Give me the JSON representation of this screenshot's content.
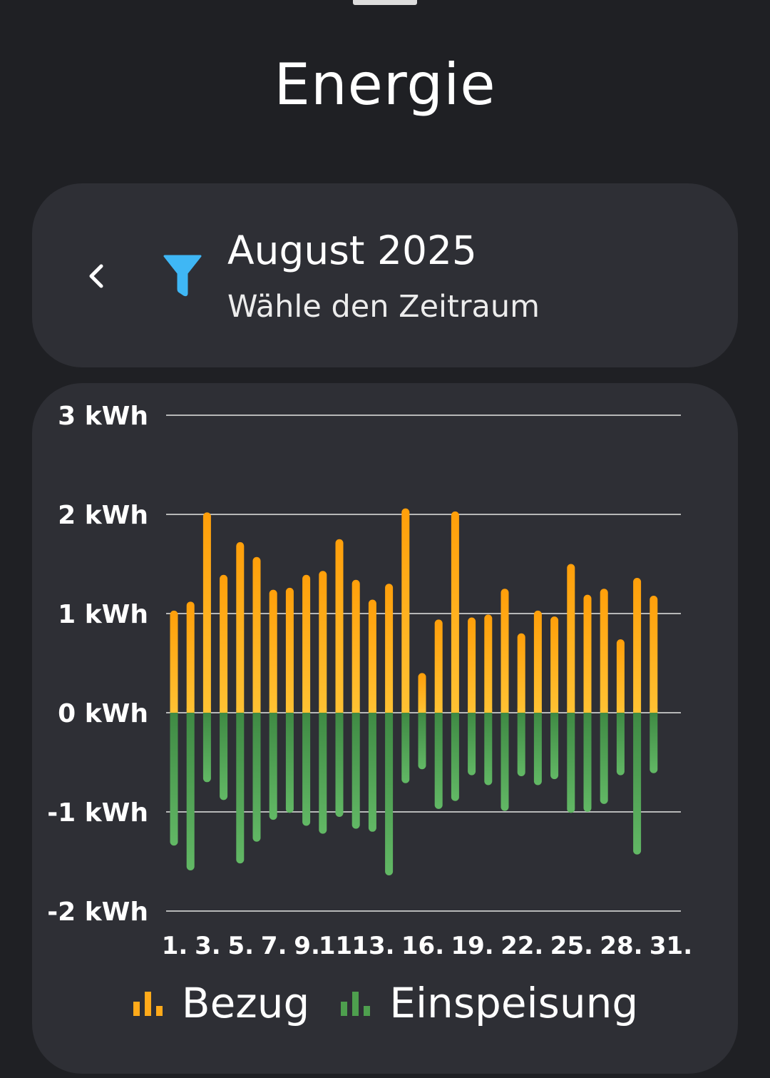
{
  "page": {
    "title": "Energie"
  },
  "period": {
    "title": "August 2025",
    "subtitle": "Wähle den Zeitraum"
  },
  "colors": {
    "background": "#1f2024",
    "card": "#2e2f35",
    "filter": "#3fb7f5",
    "bezug": "#ffaa1a",
    "einspeisung": "#4e9f4e",
    "grid": "#d0d0d0"
  },
  "icons": {
    "back": "chevron-left-icon",
    "filter": "filter-funnel-icon",
    "legend": "bar-chart-icon"
  },
  "chart_data": {
    "type": "bar",
    "stacked": "diverging",
    "ylim": [
      -2,
      3
    ],
    "yticks": [
      3,
      2,
      1,
      0,
      -1,
      -2
    ],
    "ytick_labels": [
      "3 kWh",
      "2 kWh",
      "1 kWh",
      "0 kWh",
      "-1 kWh",
      "-2 kWh"
    ],
    "y_unit": "kWh",
    "grid": true,
    "categories": [
      1,
      2,
      3,
      4,
      5,
      6,
      7,
      8,
      9,
      10,
      11,
      12,
      13,
      14,
      15,
      16,
      17,
      18,
      19,
      20,
      21,
      22,
      23,
      24,
      25,
      26,
      27,
      28,
      29,
      30,
      31
    ],
    "x_tick_labels": [
      {
        "day": 1,
        "label": "1."
      },
      {
        "day": 3,
        "label": "3."
      },
      {
        "day": 5,
        "label": "5."
      },
      {
        "day": 7,
        "label": "7."
      },
      {
        "day": 9,
        "label": "9."
      },
      {
        "day": 11,
        "label": "11."
      },
      {
        "day": 13,
        "label": "13."
      },
      {
        "day": 16,
        "label": "16."
      },
      {
        "day": 19,
        "label": "19."
      },
      {
        "day": 22,
        "label": "22."
      },
      {
        "day": 25,
        "label": "25."
      },
      {
        "day": 28,
        "label": "28."
      },
      {
        "day": 31,
        "label": "31."
      }
    ],
    "series": [
      {
        "name": "Bezug",
        "color": "#ffaa1a",
        "values": [
          1.03,
          1.12,
          2.02,
          1.39,
          1.72,
          1.57,
          1.24,
          1.26,
          1.39,
          1.43,
          1.75,
          1.34,
          1.14,
          1.3,
          2.06,
          0.4,
          0.94,
          2.03,
          0.96,
          0.99,
          1.25,
          0.8,
          1.03,
          0.97,
          1.5,
          1.19,
          1.25,
          0.74,
          1.36,
          1.18,
          null
        ]
      },
      {
        "name": "Einspeisung",
        "color": "#4e9f4e",
        "values": [
          -1.34,
          -1.59,
          -0.7,
          -0.88,
          -1.52,
          -1.3,
          -1.08,
          -1.01,
          -1.14,
          -1.22,
          -1.05,
          -1.17,
          -1.2,
          -1.64,
          -0.71,
          -0.57,
          -0.97,
          -0.89,
          -0.63,
          -0.73,
          -0.99,
          -0.64,
          -0.73,
          -0.67,
          -1.01,
          -1.0,
          -0.92,
          -0.63,
          -1.43,
          -0.61,
          null
        ]
      }
    ]
  }
}
